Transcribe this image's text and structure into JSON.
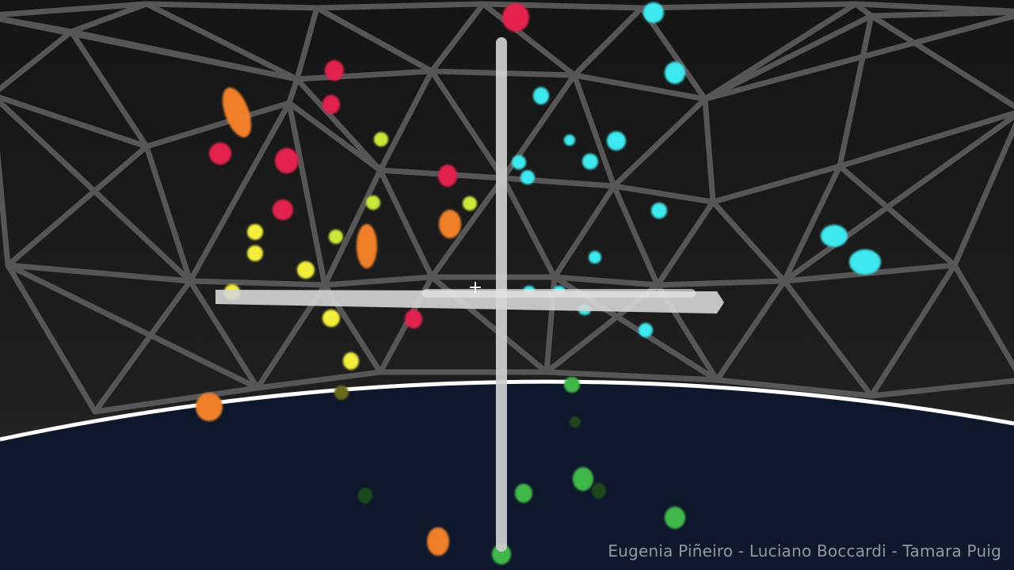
{
  "scene": {
    "background": "#1c1c1c",
    "floor_color": "#0e172b",
    "horizon_color": "#ffffff",
    "lattice_color": "#5a5a5a",
    "cross_color": "#d0d0d0",
    "credits": "Eugenia Piñeiro - Luciano Boccardi - Tamara Puig"
  },
  "particle_colors": {
    "red": "#e3204d",
    "orange": "#f07f2a",
    "yellow": "#f2ee3a",
    "lime": "#c9ea3a",
    "cyan": "#3ce8ef",
    "green": "#3fb84a",
    "dark-green": "#1c4a1f",
    "olive": "#6b6a1e"
  }
}
